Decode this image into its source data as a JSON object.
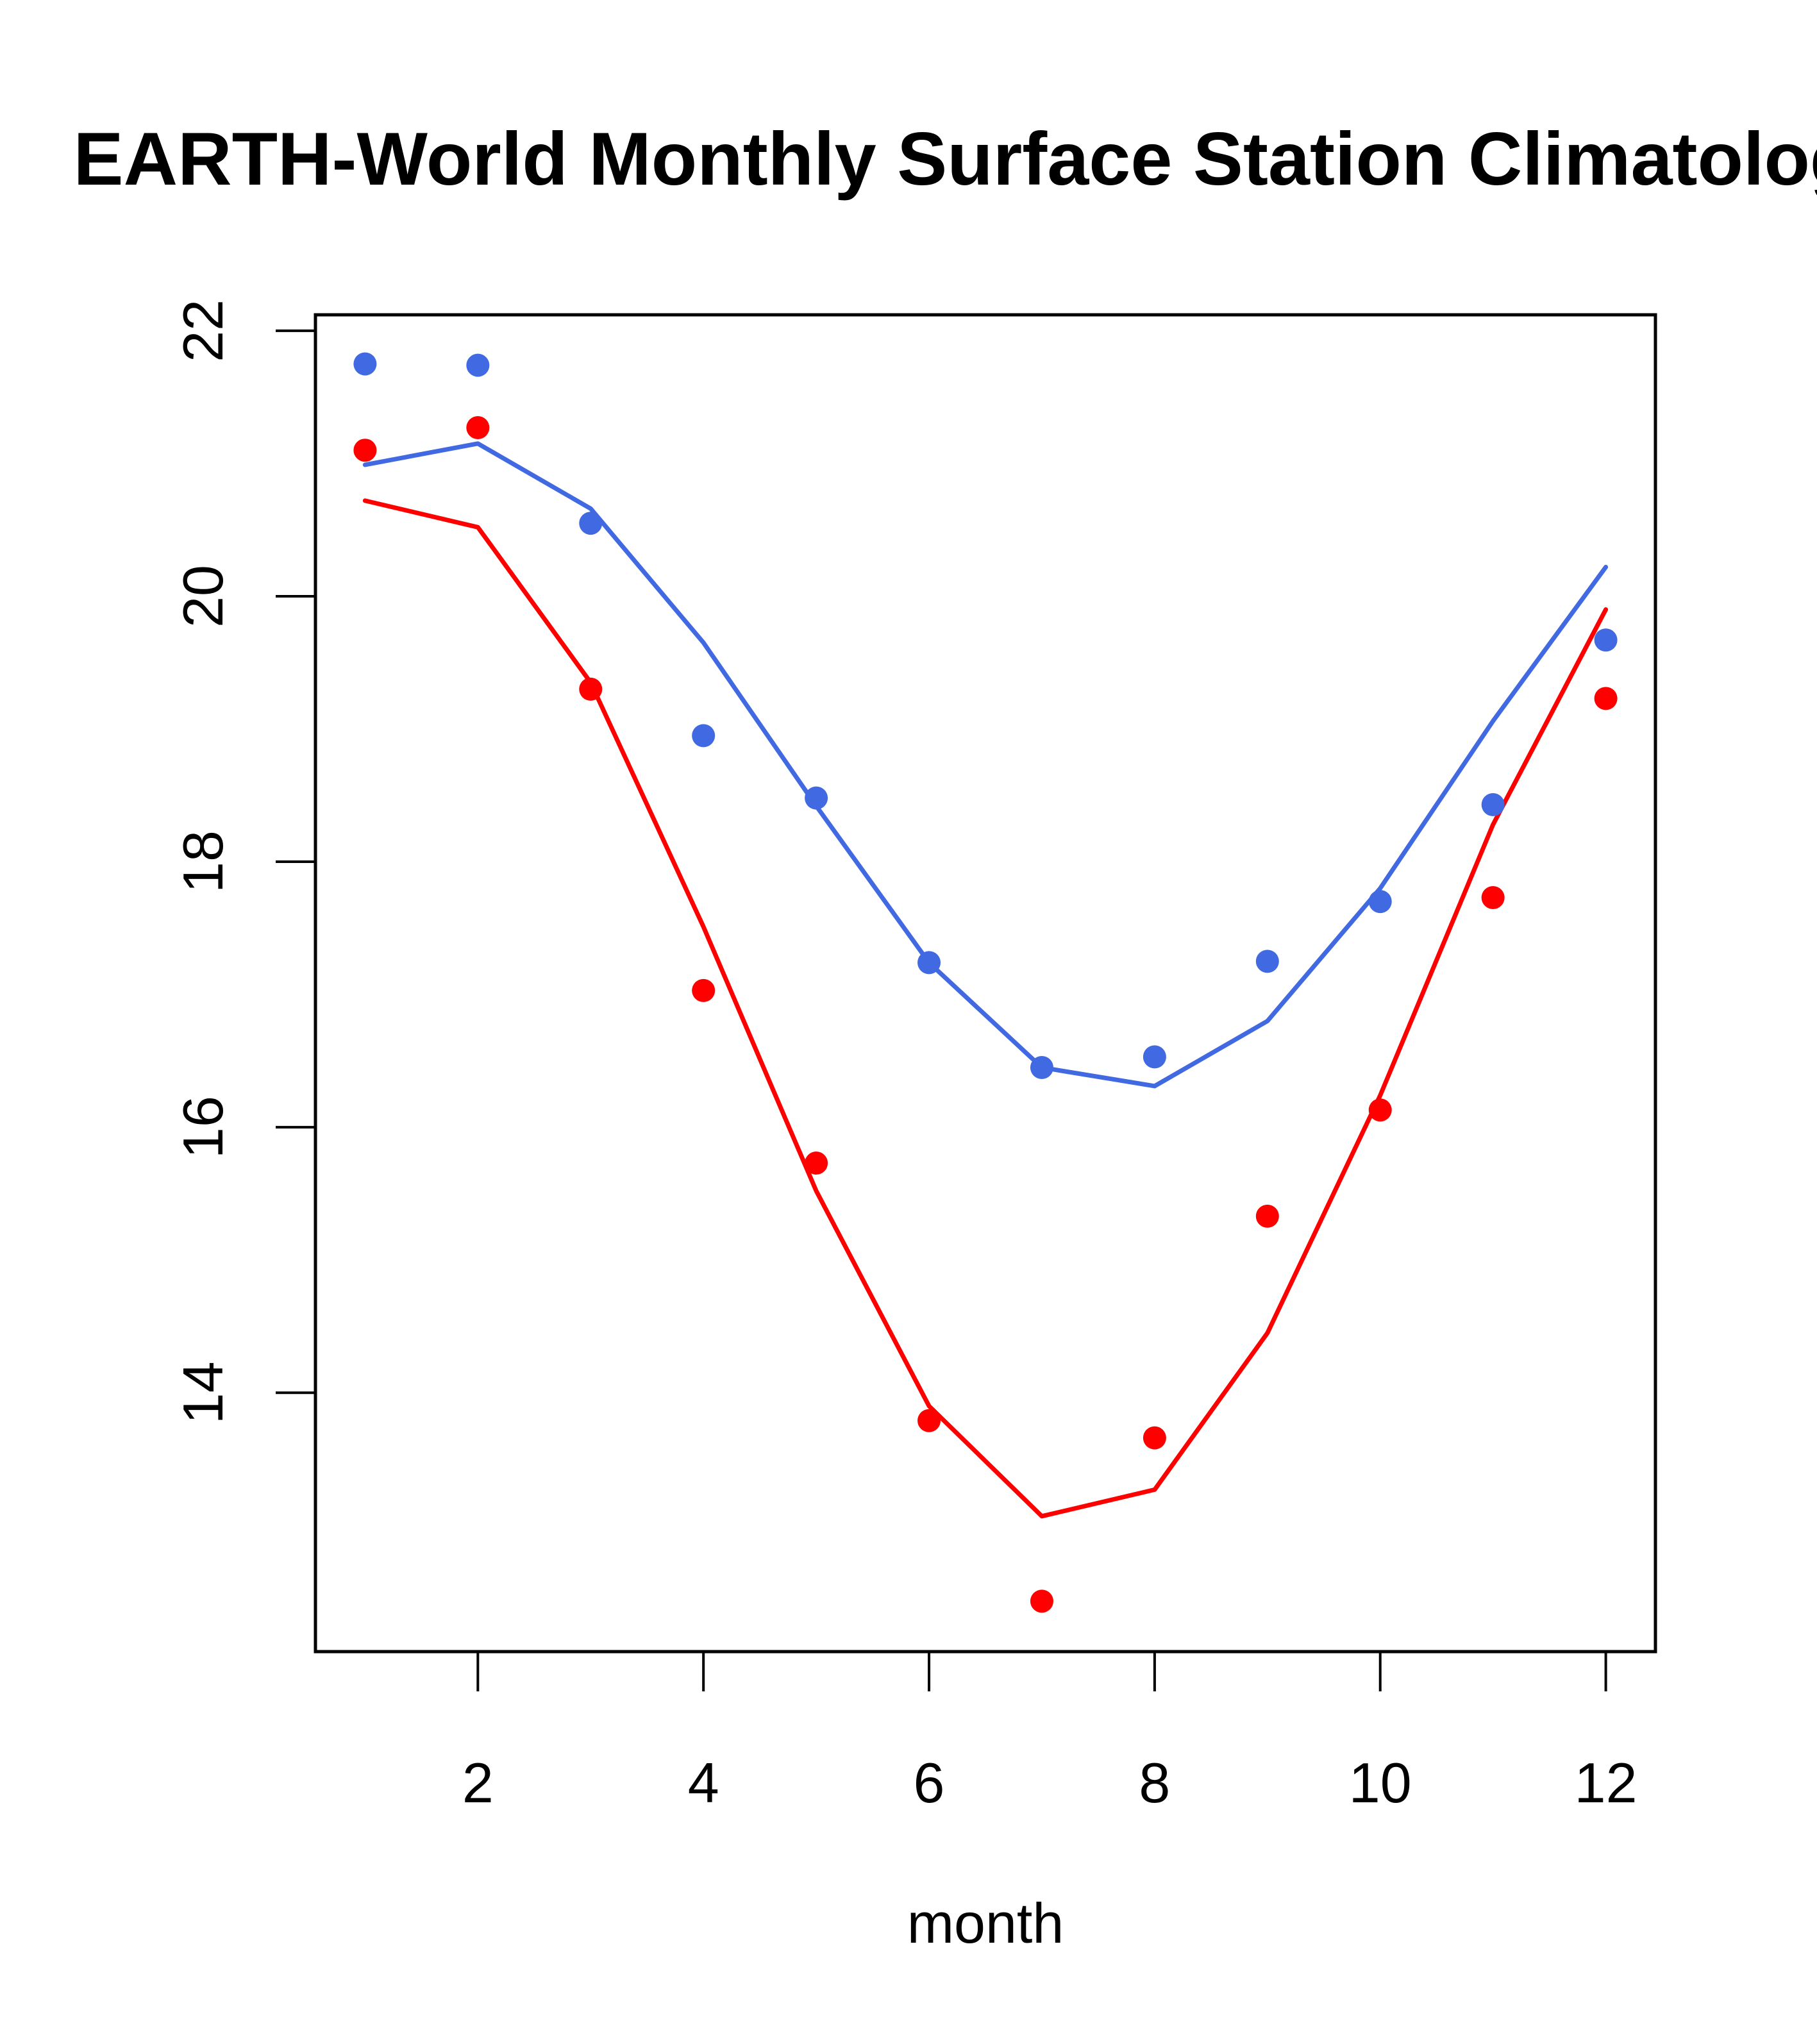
{
  "chart_data": {
    "type": "scatter",
    "title": "EARTH-World Monthly Surface Station Climatology",
    "xlabel": "month",
    "ylabel": "",
    "xlim": [
      0.56,
      12.44
    ],
    "ylim": [
      12.05,
      22.12
    ],
    "xticks": [
      2,
      4,
      6,
      8,
      10,
      12
    ],
    "yticks": [
      14,
      16,
      18,
      20,
      22
    ],
    "grid": false,
    "legend": null,
    "x": [
      1,
      2,
      3,
      4,
      5,
      6,
      7,
      8,
      9,
      10,
      11,
      12
    ],
    "series": [
      {
        "name": "blue points",
        "kind": "points",
        "color": "#4169E1",
        "values": [
          21.75,
          21.74,
          20.55,
          18.95,
          18.48,
          17.24,
          16.45,
          16.53,
          17.25,
          17.7,
          18.43,
          19.67
        ]
      },
      {
        "name": "blue line",
        "kind": "line",
        "color": "#4169E1",
        "values": [
          20.99,
          21.15,
          20.66,
          19.65,
          18.42,
          17.24,
          16.45,
          16.31,
          16.8,
          17.8,
          19.06,
          20.22
        ]
      },
      {
        "name": "red points",
        "kind": "points",
        "color": "#FF0000",
        "values": [
          21.1,
          21.27,
          19.3,
          17.03,
          15.73,
          13.79,
          12.43,
          13.66,
          15.33,
          16.13,
          17.73,
          19.23
        ]
      },
      {
        "name": "red line",
        "kind": "line",
        "color": "#FF0000",
        "values": [
          20.72,
          20.52,
          19.35,
          17.51,
          15.52,
          13.9,
          13.07,
          13.27,
          14.45,
          16.24,
          18.28,
          19.9
        ]
      }
    ]
  }
}
